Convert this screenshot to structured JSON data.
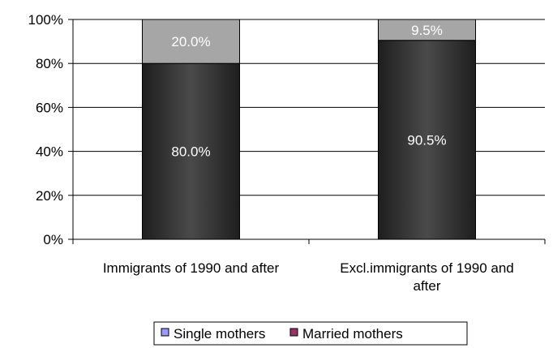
{
  "chart_data": {
    "type": "bar",
    "stacked": true,
    "percent": true,
    "categories": [
      [
        "Immigrants of 1990 and after"
      ],
      [
        "Excl.immigrants of 1990 and",
        "after"
      ]
    ],
    "series": [
      {
        "name": "Single mothers",
        "values": [
          20.0,
          9.5
        ],
        "labels": [
          "20.0%",
          "9.5%"
        ],
        "fill": "#a6a6a6",
        "legend_color": "#9999ff"
      },
      {
        "name": "Married mothers",
        "values": [
          80.0,
          90.5
        ],
        "labels": [
          "80.0%",
          "90.5%"
        ],
        "fill": "#2b2b2b",
        "legend_color": "#993366"
      }
    ],
    "stack_order": [
      "Married mothers",
      "Single mothers"
    ],
    "ylim": [
      0,
      100
    ],
    "yticks": [
      0,
      20,
      40,
      60,
      80,
      100
    ],
    "ytick_labels": [
      "0%",
      "20%",
      "40%",
      "60%",
      "80%",
      "100%"
    ],
    "grid": true,
    "legend_position": "bottom"
  }
}
